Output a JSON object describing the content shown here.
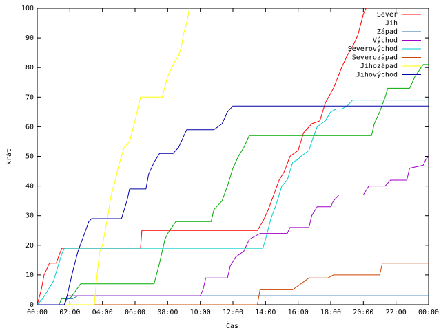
{
  "chart_data": {
    "type": "line",
    "title": "",
    "xlabel": "Čas",
    "ylabel": "krát",
    "xlim": [
      "00:00",
      "24:00"
    ],
    "ylim": [
      0,
      100
    ],
    "xticks": [
      "00:00",
      "02:00",
      "04:00",
      "06:00",
      "08:00",
      "10:00",
      "12:00",
      "14:00",
      "16:00",
      "18:00",
      "20:00",
      "22:00",
      "00:00"
    ],
    "yticks": [
      0,
      10,
      20,
      30,
      40,
      50,
      60,
      70,
      80,
      90,
      100
    ],
    "grid": false,
    "legend_position": "top-right",
    "series": [
      {
        "name": "Sever",
        "color": "#ff0000",
        "points": [
          [
            "00:00",
            0
          ],
          [
            "00:15",
            5
          ],
          [
            "00:25",
            10
          ],
          [
            "00:45",
            14
          ],
          [
            "01:10",
            14
          ],
          [
            "01:30",
            19
          ],
          [
            "06:20",
            19
          ],
          [
            "06:25",
            25
          ],
          [
            "12:00",
            25
          ],
          [
            "13:30",
            25
          ],
          [
            "13:50",
            28
          ],
          [
            "14:10",
            32
          ],
          [
            "14:30",
            37
          ],
          [
            "14:50",
            42
          ],
          [
            "15:10",
            45
          ],
          [
            "15:30",
            50
          ],
          [
            "16:00",
            52
          ],
          [
            "16:20",
            58
          ],
          [
            "16:50",
            61
          ],
          [
            "17:20",
            62
          ],
          [
            "17:40",
            68
          ],
          [
            "18:10",
            73
          ],
          [
            "18:40",
            80
          ],
          [
            "19:00",
            84
          ],
          [
            "19:20",
            87
          ],
          [
            "19:40",
            91
          ],
          [
            "20:00",
            98
          ],
          [
            "20:10",
            100
          ]
        ]
      },
      {
        "name": "Jih",
        "color": "#00aa00",
        "points": [
          [
            "00:00",
            0
          ],
          [
            "01:20",
            0
          ],
          [
            "01:30",
            2
          ],
          [
            "02:00",
            2
          ],
          [
            "02:40",
            7
          ],
          [
            "07:10",
            7
          ],
          [
            "07:30",
            14
          ],
          [
            "07:40",
            18
          ],
          [
            "07:50",
            22
          ],
          [
            "08:00",
            24
          ],
          [
            "08:30",
            28
          ],
          [
            "10:40",
            28
          ],
          [
            "10:50",
            32
          ],
          [
            "11:20",
            35
          ],
          [
            "11:40",
            40
          ],
          [
            "12:00",
            46
          ],
          [
            "12:20",
            50
          ],
          [
            "12:40",
            53
          ],
          [
            "13:00",
            57
          ],
          [
            "20:30",
            57
          ],
          [
            "20:40",
            61
          ],
          [
            "21:00",
            65
          ],
          [
            "21:20",
            70
          ],
          [
            "21:30",
            73
          ],
          [
            "22:50",
            73
          ],
          [
            "23:10",
            77
          ],
          [
            "23:40",
            81
          ],
          [
            "24:00",
            81
          ]
        ]
      },
      {
        "name": "Západ",
        "color": "#1f6fb0",
        "points": [
          [
            "00:00",
            0
          ],
          [
            "01:40",
            0
          ],
          [
            "01:50",
            2
          ],
          [
            "02:10",
            2
          ],
          [
            "02:30",
            3
          ],
          [
            "08:00",
            3
          ],
          [
            "24:00",
            3
          ]
        ]
      },
      {
        "name": "Východ",
        "color": "#a000c8",
        "points": [
          [
            "00:00",
            0
          ],
          [
            "01:40",
            0
          ],
          [
            "01:50",
            3
          ],
          [
            "10:00",
            3
          ],
          [
            "10:10",
            5
          ],
          [
            "10:20",
            9
          ],
          [
            "11:40",
            9
          ],
          [
            "11:50",
            13
          ],
          [
            "12:10",
            16
          ],
          [
            "12:40",
            18
          ],
          [
            "13:00",
            22
          ],
          [
            "13:40",
            24
          ],
          [
            "15:20",
            24
          ],
          [
            "15:30",
            26
          ],
          [
            "16:40",
            26
          ],
          [
            "16:50",
            30
          ],
          [
            "17:10",
            33
          ],
          [
            "18:00",
            33
          ],
          [
            "18:10",
            35
          ],
          [
            "18:30",
            37
          ],
          [
            "20:00",
            37
          ],
          [
            "20:20",
            40
          ],
          [
            "21:20",
            40
          ],
          [
            "21:40",
            42
          ],
          [
            "22:40",
            42
          ],
          [
            "22:50",
            46
          ],
          [
            "23:40",
            47
          ],
          [
            "23:50",
            49
          ],
          [
            "24:00",
            50
          ]
        ]
      },
      {
        "name": "Severovýchod",
        "color": "#00cccc",
        "points": [
          [
            "00:00",
            0
          ],
          [
            "00:20",
            2
          ],
          [
            "01:00",
            8
          ],
          [
            "01:30",
            17
          ],
          [
            "01:40",
            19
          ],
          [
            "13:50",
            19
          ],
          [
            "14:00",
            22
          ],
          [
            "14:20",
            29
          ],
          [
            "14:40",
            34
          ],
          [
            "15:00",
            40
          ],
          [
            "15:20",
            42
          ],
          [
            "15:40",
            48
          ],
          [
            "16:00",
            49
          ],
          [
            "16:10",
            50
          ],
          [
            "16:40",
            52
          ],
          [
            "16:50",
            55
          ],
          [
            "17:10",
            60
          ],
          [
            "17:40",
            62
          ],
          [
            "18:00",
            65
          ],
          [
            "18:20",
            66
          ],
          [
            "18:40",
            66
          ],
          [
            "19:00",
            67
          ],
          [
            "19:20",
            69
          ],
          [
            "24:00",
            69
          ]
        ]
      },
      {
        "name": "Severozápad",
        "color": "#cc4400",
        "points": [
          [
            "00:00",
            0
          ],
          [
            "13:30",
            0
          ],
          [
            "13:40",
            5
          ],
          [
            "15:40",
            5
          ],
          [
            "16:10",
            7
          ],
          [
            "16:40",
            9
          ],
          [
            "17:50",
            9
          ],
          [
            "18:10",
            10
          ],
          [
            "21:00",
            10
          ],
          [
            "21:10",
            14
          ],
          [
            "24:00",
            14
          ]
        ]
      },
      {
        "name": "Jihozápad",
        "color": "#ffff00",
        "points": [
          [
            "00:00",
            0
          ],
          [
            "03:30",
            0
          ],
          [
            "03:40",
            10
          ],
          [
            "03:50",
            18
          ],
          [
            "04:00",
            20
          ],
          [
            "04:10",
            25
          ],
          [
            "04:20",
            30
          ],
          [
            "04:30",
            36
          ],
          [
            "04:50",
            43
          ],
          [
            "05:00",
            47
          ],
          [
            "05:10",
            50
          ],
          [
            "05:20",
            53
          ],
          [
            "05:40",
            55
          ],
          [
            "06:00",
            62
          ],
          [
            "06:20",
            70
          ],
          [
            "07:40",
            70
          ],
          [
            "08:00",
            77
          ],
          [
            "08:20",
            81
          ],
          [
            "08:40",
            84
          ],
          [
            "08:50",
            87
          ],
          [
            "09:00",
            92
          ],
          [
            "09:10",
            95
          ],
          [
            "09:20",
            100
          ]
        ]
      },
      {
        "name": "Jihovýchod",
        "color": "#0000aa",
        "points": [
          [
            "00:00",
            0
          ],
          [
            "01:40",
            0
          ],
          [
            "01:50",
            3
          ],
          [
            "02:10",
            11
          ],
          [
            "02:30",
            18
          ],
          [
            "02:50",
            23
          ],
          [
            "03:10",
            28
          ],
          [
            "03:20",
            29
          ],
          [
            "05:10",
            29
          ],
          [
            "05:30",
            35
          ],
          [
            "05:40",
            39
          ],
          [
            "06:40",
            39
          ],
          [
            "06:50",
            44
          ],
          [
            "07:10",
            48
          ],
          [
            "07:30",
            51
          ],
          [
            "08:20",
            51
          ],
          [
            "08:40",
            53
          ],
          [
            "08:50",
            55
          ],
          [
            "09:10",
            59
          ],
          [
            "10:50",
            59
          ],
          [
            "11:20",
            61
          ],
          [
            "11:30",
            63
          ],
          [
            "11:40",
            65
          ],
          [
            "12:00",
            67
          ],
          [
            "24:00",
            67
          ]
        ]
      }
    ]
  }
}
